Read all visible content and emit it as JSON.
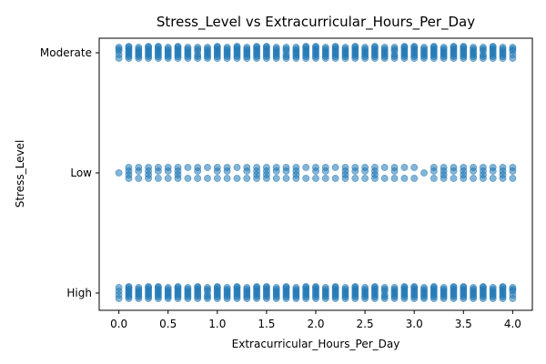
{
  "chart_data": {
    "type": "scatter",
    "title": "Stress_Level vs Extracurricular_Hours_Per_Day",
    "xlabel": "Extracurricular_Hours_Per_Day",
    "ylabel": "Stress_Level",
    "xlim": [
      -0.2,
      4.2
    ],
    "x_ticks": [
      "0.0",
      "0.5",
      "1.0",
      "1.5",
      "2.0",
      "2.5",
      "3.0",
      "3.5",
      "4.0"
    ],
    "y_categories": [
      "High",
      "Low",
      "Moderate"
    ],
    "grid": false,
    "legend": "none",
    "color": "#1f77b4",
    "points_per_x": {
      "x": [
        0.0,
        0.1,
        0.2,
        0.3,
        0.4,
        0.5,
        0.6,
        0.7,
        0.8,
        0.9,
        1.0,
        1.1,
        1.2,
        1.3,
        1.4,
        1.5,
        1.6,
        1.7,
        1.8,
        1.9,
        2.0,
        2.1,
        2.2,
        2.3,
        2.4,
        2.5,
        2.6,
        2.7,
        2.8,
        2.9,
        3.0,
        3.1,
        3.2,
        3.3,
        3.4,
        3.5,
        3.6,
        3.7,
        3.8,
        3.9,
        4.0
      ],
      "High": [
        4,
        8,
        7,
        8,
        8,
        7,
        8,
        7,
        8,
        6,
        8,
        7,
        8,
        7,
        8,
        8,
        7,
        8,
        7,
        8,
        8,
        7,
        8,
        7,
        8,
        7,
        8,
        6,
        7,
        8,
        8,
        7,
        8,
        7,
        8,
        8,
        7,
        8,
        7,
        8,
        5
      ],
      "Moderate": [
        5,
        8,
        7,
        8,
        8,
        7,
        8,
        7,
        6,
        7,
        8,
        7,
        8,
        7,
        8,
        8,
        7,
        6,
        7,
        8,
        8,
        7,
        8,
        7,
        8,
        7,
        8,
        7,
        6,
        8,
        8,
        7,
        8,
        7,
        8,
        8,
        7,
        6,
        8,
        7,
        5
      ],
      "Low": [
        1,
        4,
        3,
        4,
        3,
        3,
        4,
        2,
        3,
        2,
        3,
        3,
        2,
        3,
        4,
        4,
        3,
        3,
        4,
        2,
        3,
        3,
        2,
        4,
        3,
        3,
        4,
        2,
        3,
        2,
        2,
        1,
        3,
        4,
        3,
        4,
        3,
        4,
        3,
        4,
        3
      ]
    }
  }
}
